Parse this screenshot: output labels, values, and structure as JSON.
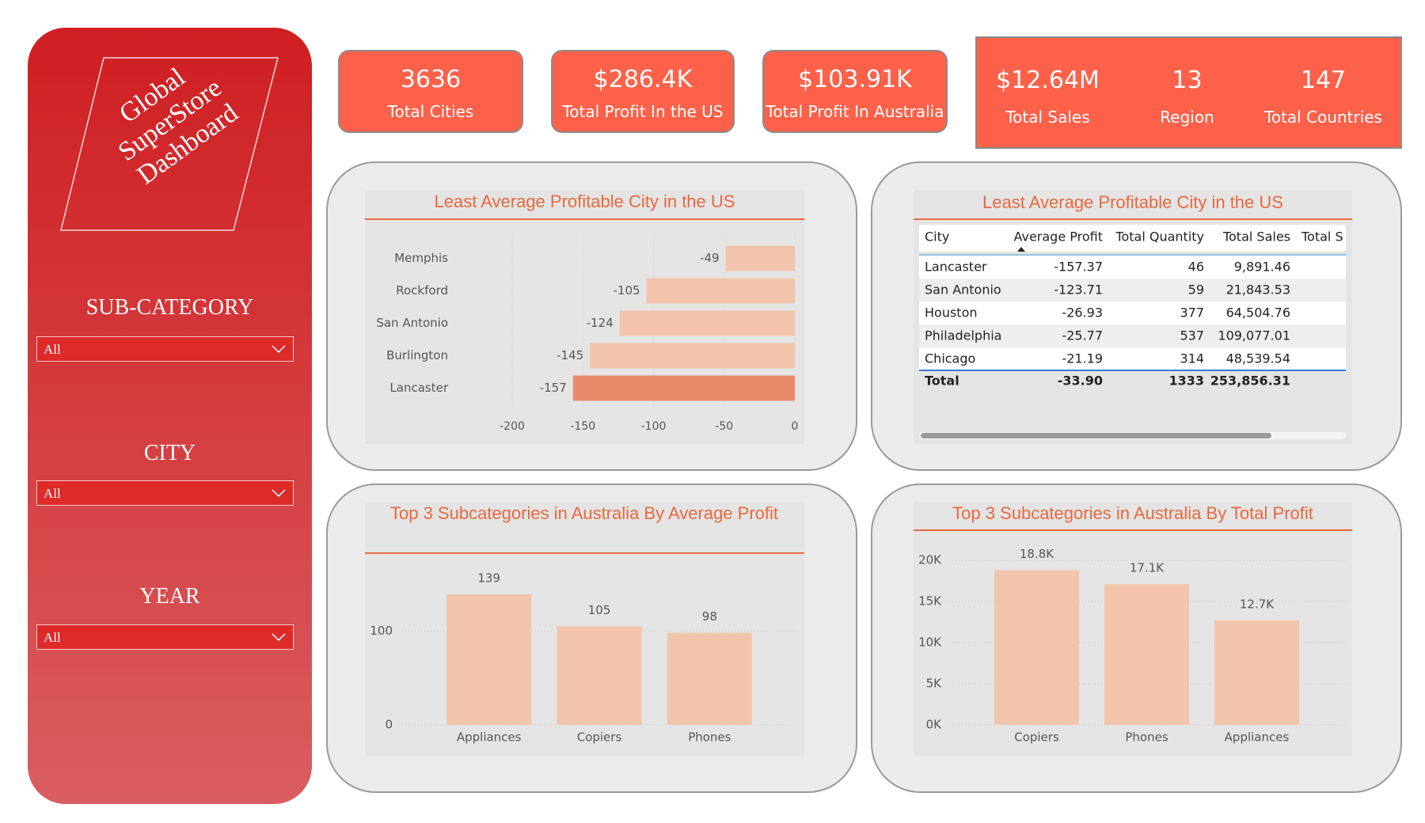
{
  "sidebar": {
    "title_lines": [
      "Global",
      "SuperStore",
      "Dashboard"
    ],
    "filters": [
      {
        "label": "SUB-CATEGORY",
        "value": "All"
      },
      {
        "label": "CITY",
        "value": "All"
      },
      {
        "label": "YEAR",
        "value": "All"
      }
    ]
  },
  "kpis": [
    {
      "value": "3636",
      "label": "Total Cities"
    },
    {
      "value": "$286.4K",
      "label": "Total Profit In the US"
    },
    {
      "value": "$103.91K",
      "label": "Total Profit In Australia"
    }
  ],
  "summary_card": [
    {
      "value": "$12.64M",
      "label": "Total Sales"
    },
    {
      "value": "13",
      "label": "Region"
    },
    {
      "value": "147",
      "label": "Total Countries"
    }
  ],
  "table": {
    "title": "Least Average Profitable City in the US",
    "columns": [
      "City",
      "Average Profit",
      "Total Quantity",
      "Total Sales",
      "Total S"
    ],
    "rows": [
      [
        "Lancaster",
        "-157.37",
        "46",
        "9,891.46"
      ],
      [
        "San Antonio",
        "-123.71",
        "59",
        "21,843.53"
      ],
      [
        "Houston",
        "-26.93",
        "377",
        "64,504.76"
      ],
      [
        "Philadelphia",
        "-25.77",
        "537",
        "109,077.01"
      ],
      [
        "Chicago",
        "-21.19",
        "314",
        "48,539.54"
      ]
    ],
    "total": [
      "Total",
      "-33.90",
      "1333",
      "253,856.31"
    ]
  },
  "chart_data": [
    {
      "type": "hbar",
      "title": "Least Average Profitable City in the US",
      "categories": [
        "Memphis",
        "Rockford",
        "San Antonio",
        "Burlington",
        "Lancaster"
      ],
      "values": [
        -49,
        -105,
        -124,
        -145,
        -157
      ],
      "colors": [
        "#f2c4ab",
        "#f2c4ab",
        "#f2c4ab",
        "#f2c4ab",
        "#e8896a"
      ],
      "xlim": [
        -200,
        0
      ],
      "xticks": [
        -200,
        -150,
        -100,
        -50,
        0
      ],
      "grid": true
    },
    {
      "type": "bar",
      "title": "Top 3 Subcategories in Australia By Average Profit",
      "categories": [
        "Appliances",
        "Copiers",
        "Phones"
      ],
      "values": [
        139,
        105,
        98
      ],
      "color": "#f2c4ab",
      "ylim": [
        0,
        160
      ],
      "yticks": [
        0,
        100
      ],
      "grid": true
    },
    {
      "type": "bar",
      "title": "Top 3 Subcategories in Australia By Total Profit",
      "categories": [
        "Copiers",
        "Phones",
        "Appliances"
      ],
      "values": [
        18800,
        17100,
        12700
      ],
      "value_labels": [
        "18.8K",
        "17.1K",
        "12.7K"
      ],
      "color": "#f2c4ab",
      "ylim": [
        0,
        21000
      ],
      "yticks": [
        {
          "value": 0,
          "label": "0K"
        },
        {
          "value": 5000,
          "label": "5K"
        },
        {
          "value": 10000,
          "label": "10K"
        },
        {
          "value": 15000,
          "label": "15K"
        },
        {
          "value": 20000,
          "label": "20K"
        }
      ],
      "grid": true
    }
  ]
}
